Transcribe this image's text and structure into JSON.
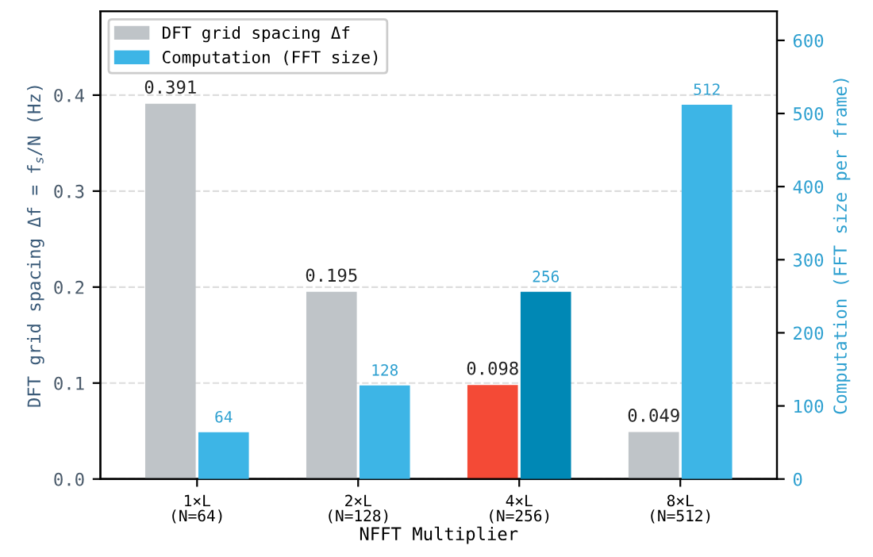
{
  "chart_data": {
    "type": "bar",
    "categories": [
      "1×L\n(N=64)",
      "2×L\n(N=128)",
      "4×L\n(N=256)",
      "8×L\n(N=512)"
    ],
    "xlabel": "NFFT Multiplier",
    "ylabel": "DFT grid spacing Δf = f$_{s}$/N (Hz)",
    "y2label": "Computation (FFT size per frame)",
    "series": [
      {
        "name": "DFT grid spacing Δf",
        "color": "#bfc4c8",
        "colors": [
          "#bfc4c8",
          "#bfc4c8",
          "#f44a36",
          "#bfc4c8"
        ],
        "values": [
          0.391,
          0.195,
          0.098,
          0.049
        ],
        "value_labels": [
          "0.391",
          "0.195",
          "0.098",
          "0.049"
        ]
      },
      {
        "name": "Computation (FFT size)",
        "color": "#3db5e6",
        "colors": [
          "#3db5e6",
          "#3db5e6",
          "#0088b5",
          "#3db5e6"
        ],
        "values": [
          64,
          128,
          256,
          512
        ],
        "axis": "y2",
        "value_labels": [
          "64",
          "128",
          "256",
          "512"
        ]
      }
    ],
    "ylim": [
      0,
      0.4875
    ],
    "yticks": [
      {
        "value": 0,
        "label": "0.0"
      },
      0.1,
      0.2,
      0.3,
      0.4
    ],
    "y2lim": [
      0,
      640
    ],
    "y2ticks": [
      0,
      100,
      200,
      300,
      400,
      500,
      600
    ],
    "grid": "y",
    "legend": "top left"
  }
}
